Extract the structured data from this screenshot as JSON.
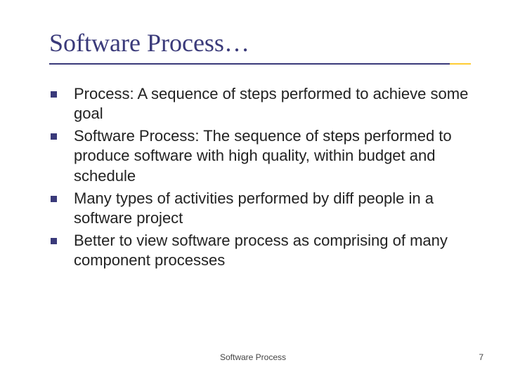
{
  "slide": {
    "title": "Software Process…",
    "title_color": "#3a3a7a",
    "title_fontsize": 36,
    "underline_primary_color": "#3a3a7a",
    "underline_accent_color": "#ffcc33",
    "background_color": "#ffffff",
    "bullets": [
      {
        "marker_color": "#3a3a7a",
        "text": "Process: A sequence of steps performed to achieve some goal"
      },
      {
        "marker_color": "#3a3a7a",
        "text": "Software Process: The sequence of steps performed to produce software with high quality, within budget and schedule"
      },
      {
        "marker_color": "#3a3a7a",
        "text": "Many types of activities performed by diff people in a software project"
      },
      {
        "marker_color": "#3a3a7a",
        "text": "Better to view software process as comprising of many component processes"
      }
    ],
    "body_fontsize": 22,
    "body_color": "#222222",
    "footer_label": "Software Process",
    "page_number": "7",
    "footer_fontsize": 12,
    "footer_color": "#444444"
  }
}
